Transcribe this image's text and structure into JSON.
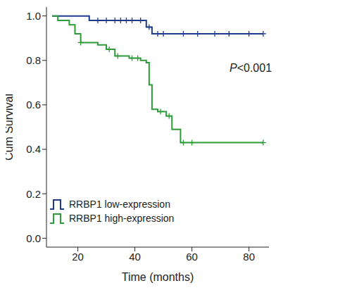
{
  "chart_data": {
    "type": "line",
    "line_style": "step",
    "marker": "plus",
    "xlabel": "Time (months)",
    "ylabel": "Cum Survival",
    "annotation": "P<0.001",
    "legend": "lower left",
    "grid": false,
    "xlim": [
      9,
      87
    ],
    "xticks": [
      20,
      40,
      60,
      80
    ],
    "ylim": [
      -0.04,
      1.04
    ],
    "yticks": [
      {
        "value": 0,
        "label": "0.0"
      },
      {
        "value": 0.2,
        "label": "0.2"
      },
      {
        "value": 0.4,
        "label": "0.4"
      },
      {
        "value": 0.6,
        "label": "0.6"
      },
      {
        "value": 0.8,
        "label": "0.8"
      },
      {
        "value": 1,
        "label": "1.0"
      }
    ],
    "series": [
      {
        "name": "RRBP1 low-expression",
        "color": "#1f3a8f",
        "x": [
          11,
          24,
          44,
          46,
          85
        ],
        "values": [
          1.0,
          0.98,
          0.95,
          0.92,
          0.92
        ],
        "censored": [
          27,
          30,
          33,
          35,
          37,
          39,
          42,
          45,
          48,
          50,
          57,
          62,
          68,
          73,
          80,
          85
        ]
      },
      {
        "name": "RRBP1 high-expression",
        "color": "#2e9b3a",
        "x": [
          11,
          13,
          17,
          19,
          21,
          27,
          30,
          33,
          38,
          42,
          44,
          45,
          46,
          48,
          51,
          53,
          56,
          85
        ],
        "values": [
          1.0,
          0.98,
          0.96,
          0.92,
          0.88,
          0.87,
          0.85,
          0.82,
          0.81,
          0.8,
          0.79,
          0.69,
          0.58,
          0.57,
          0.55,
          0.49,
          0.43,
          0.43
        ],
        "censored": [
          21,
          31,
          34,
          39,
          41,
          49,
          52,
          57,
          60,
          85
        ]
      }
    ]
  }
}
